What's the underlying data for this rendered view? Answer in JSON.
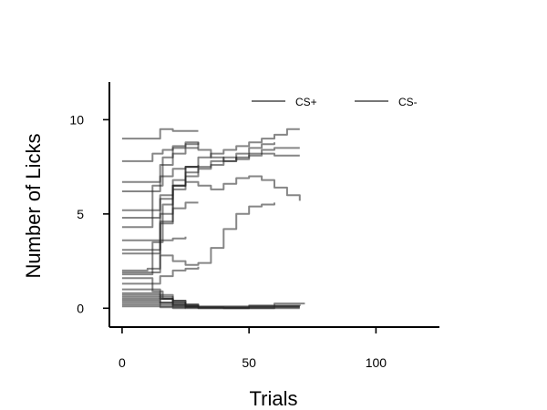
{
  "chart_data": {
    "type": "line",
    "title": "",
    "xlabel": "Trials",
    "ylabel": "Number of Licks",
    "xlim": [
      -5,
      125
    ],
    "ylim": [
      -1,
      12
    ],
    "xticks": [
      0,
      50,
      100
    ],
    "yticks": [
      0,
      5,
      10
    ],
    "grid": false,
    "legend": {
      "placement": "top-right",
      "entries": [
        {
          "label": "CS+",
          "color": "#777777"
        },
        {
          "label": "CS-",
          "color": "#777777"
        }
      ]
    },
    "line_color": "#222222",
    "line_opacity": 0.55,
    "series": [
      {
        "group": "CS+",
        "x": [
          0,
          10,
          15,
          20,
          25,
          30,
          35,
          40,
          45,
          50,
          55,
          60,
          65,
          70
        ],
        "y": [
          3.1,
          3.1,
          5.0,
          6.5,
          7.2,
          7.5,
          7.8,
          8.0,
          7.9,
          8.2,
          8.4,
          8.5,
          8.5,
          8.5
        ]
      },
      {
        "group": "CS+",
        "x": [
          0,
          10,
          15,
          20,
          25,
          30,
          35,
          40,
          45,
          50,
          55,
          60,
          65,
          70
        ],
        "y": [
          2.0,
          2.1,
          4.5,
          6.3,
          7.0,
          7.4,
          7.6,
          7.8,
          8.0,
          8.1,
          8.2,
          8.1,
          8.1,
          8.1
        ]
      },
      {
        "group": "CS+",
        "x": [
          0,
          8,
          12,
          16,
          20,
          25,
          30,
          35,
          40,
          45,
          50,
          55,
          60,
          65,
          70
        ],
        "y": [
          1.8,
          1.8,
          3.5,
          5.5,
          6.5,
          7.5,
          8.0,
          8.2,
          8.4,
          8.6,
          8.8,
          9.0,
          9.2,
          9.5,
          9.5
        ]
      },
      {
        "group": "CS+",
        "x": [
          0,
          10,
          15,
          20,
          25,
          30,
          35,
          40,
          45,
          50,
          55,
          60,
          65,
          70
        ],
        "y": [
          4.8,
          4.8,
          5.8,
          6.5,
          6.7,
          6.5,
          6.3,
          6.6,
          6.9,
          7.0,
          6.8,
          6.4,
          6.0,
          5.7
        ]
      },
      {
        "group": "CS+",
        "x": [
          0,
          8,
          12,
          16,
          20,
          25,
          30,
          35,
          40,
          45,
          50,
          55,
          60
        ],
        "y": [
          4.3,
          4.3,
          6.5,
          8.0,
          8.5,
          8.8,
          8.4,
          8.0,
          7.8,
          8.2,
          8.5,
          8.7,
          8.8
        ]
      },
      {
        "group": "CS+",
        "x": [
          0,
          10,
          15,
          20,
          25,
          30,
          35,
          40,
          45,
          50,
          55,
          60
        ],
        "y": [
          1.9,
          1.9,
          2.8,
          2.5,
          2.3,
          2.4,
          3.2,
          4.2,
          5.0,
          5.4,
          5.5,
          5.6
        ]
      },
      {
        "group": "CS+",
        "x": [
          0,
          10,
          15,
          20,
          25,
          30
        ],
        "y": [
          6.7,
          6.7,
          7.6,
          8.2,
          8.5,
          8.5
        ]
      },
      {
        "group": "CS+",
        "x": [
          0,
          10,
          15,
          20,
          25,
          30
        ],
        "y": [
          9.0,
          9.0,
          9.5,
          9.4,
          9.4,
          9.4
        ]
      },
      {
        "group": "CS+",
        "x": [
          0,
          8,
          12,
          16,
          20,
          25,
          30
        ],
        "y": [
          7.8,
          7.8,
          8.2,
          8.4,
          8.6,
          8.7,
          8.8
        ]
      },
      {
        "group": "CS+",
        "x": [
          0,
          10,
          15,
          20,
          25,
          30
        ],
        "y": [
          3.6,
          3.6,
          4.6,
          5.3,
          5.6,
          5.6
        ]
      },
      {
        "group": "CS+",
        "x": [
          0,
          10,
          15,
          20,
          25
        ],
        "y": [
          2.9,
          2.9,
          3.6,
          3.7,
          3.8
        ]
      },
      {
        "group": "CS+",
        "x": [
          0,
          10,
          15,
          20,
          25,
          30
        ],
        "y": [
          1.3,
          1.3,
          1.7,
          2.0,
          2.1,
          2.2
        ]
      },
      {
        "group": "CS+",
        "x": [
          0,
          10,
          15,
          20,
          25,
          30
        ],
        "y": [
          6.2,
          6.2,
          7.0,
          7.4,
          7.5,
          7.5
        ]
      },
      {
        "group": "CS+",
        "x": [
          0,
          10,
          15,
          20,
          25,
          30
        ],
        "y": [
          5.2,
          5.2,
          6.0,
          6.8,
          7.5,
          7.6
        ]
      },
      {
        "group": "CS-",
        "x": [
          0,
          10,
          15,
          20,
          25,
          30,
          40,
          50,
          60,
          70
        ],
        "y": [
          0.8,
          0.8,
          0.5,
          0.3,
          0.1,
          0.05,
          0.05,
          0.1,
          0.1,
          0.1
        ]
      },
      {
        "group": "CS-",
        "x": [
          0,
          8,
          12,
          16,
          20,
          25,
          30,
          40,
          50,
          60,
          70
        ],
        "y": [
          1.6,
          1.6,
          0.9,
          0.5,
          0.2,
          0.1,
          0.05,
          0.0,
          0.05,
          0.1,
          0.1
        ]
      },
      {
        "group": "CS-",
        "x": [
          0,
          10,
          15,
          20,
          25,
          30,
          40,
          50,
          60,
          70
        ],
        "y": [
          0.5,
          0.5,
          0.3,
          0.15,
          0.05,
          0.0,
          0.0,
          0.0,
          0.05,
          0.05
        ]
      },
      {
        "group": "CS-",
        "x": [
          0,
          10,
          15,
          20,
          25,
          30,
          40,
          50,
          60,
          72
        ],
        "y": [
          0.7,
          0.7,
          0.6,
          0.4,
          0.2,
          0.1,
          0.1,
          0.15,
          0.25,
          0.25
        ]
      },
      {
        "group": "CS-",
        "x": [
          0,
          10,
          15,
          20,
          25,
          30
        ],
        "y": [
          0.3,
          0.3,
          0.2,
          0.1,
          0.05,
          0.0
        ]
      },
      {
        "group": "CS-",
        "x": [
          0,
          10,
          15,
          20,
          25,
          30
        ],
        "y": [
          1.0,
          1.0,
          0.7,
          0.4,
          0.2,
          0.1
        ]
      },
      {
        "group": "CS-",
        "x": [
          0,
          10,
          15,
          20,
          25,
          30,
          40,
          50,
          60,
          70
        ],
        "y": [
          0.2,
          0.2,
          0.1,
          0.05,
          0.0,
          0.0,
          0.0,
          0.0,
          0.0,
          0.0
        ]
      },
      {
        "group": "CS-",
        "x": [
          0,
          10,
          15,
          20,
          25,
          30
        ],
        "y": [
          0.6,
          0.6,
          0.5,
          0.3,
          0.15,
          0.05
        ]
      },
      {
        "group": "CS-",
        "x": [
          0,
          10,
          15,
          20,
          25,
          30,
          40,
          50,
          60,
          70
        ],
        "y": [
          0.4,
          0.4,
          0.3,
          0.2,
          0.1,
          0.05,
          0.05,
          0.1,
          0.15,
          0.2
        ]
      },
      {
        "group": "CS-",
        "x": [
          0,
          10,
          15,
          20,
          25
        ],
        "y": [
          0.1,
          0.1,
          0.05,
          0.0,
          0.0
        ]
      }
    ]
  }
}
